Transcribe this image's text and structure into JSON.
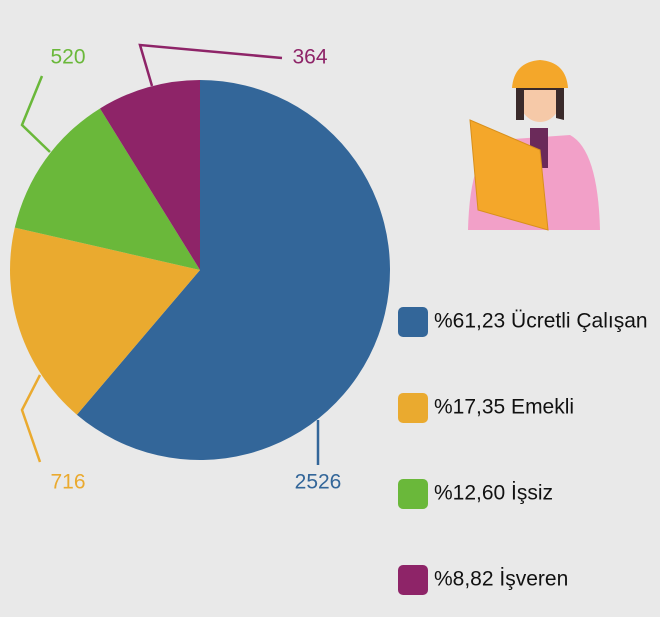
{
  "chart_data": {
    "type": "pie",
    "categories": [
      "%61,23 Ücretli Çalışan",
      "%17,35 Emekli",
      "%12,60 İşsiz",
      "%8,82 İşveren"
    ],
    "values": [
      2526,
      716,
      520,
      364
    ],
    "colors": [
      "#336699",
      "#eaaa2f",
      "#6ab83a",
      "#8e2468"
    ]
  }
}
